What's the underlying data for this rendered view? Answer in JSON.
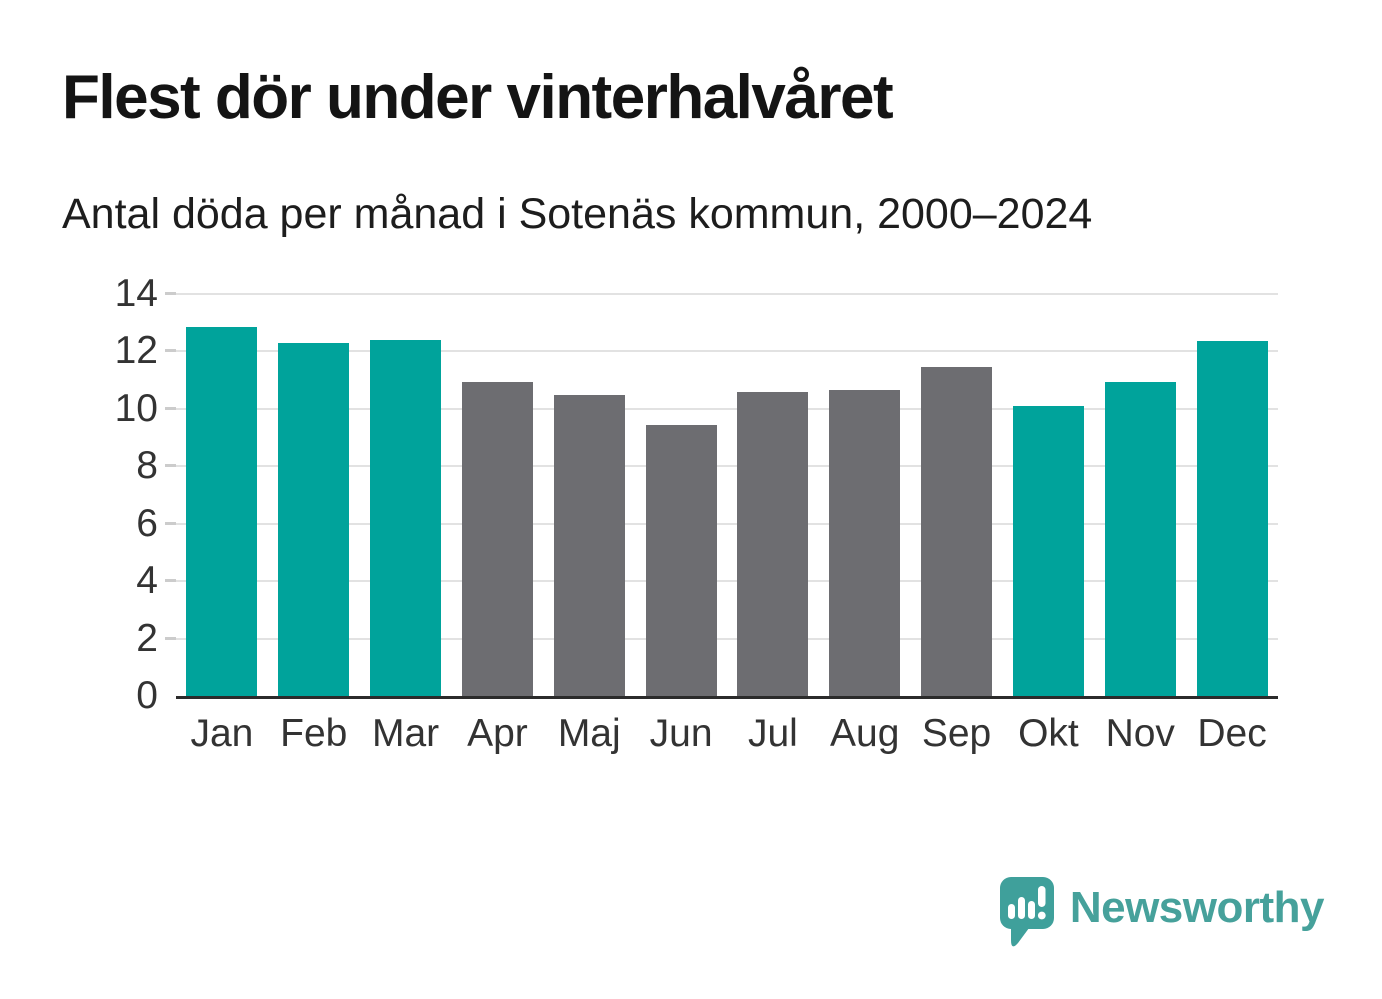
{
  "header": {
    "title": "Flest dör under vinterhalvåret",
    "subtitle": "Antal döda per månad i Sotenäs kommun, 2000–2024"
  },
  "chart_data": {
    "type": "bar",
    "title": "Flest dör under vinterhalvåret",
    "subtitle": "Antal döda per månad i Sotenäs kommun, 2000–2024",
    "categories": [
      "Jan",
      "Feb",
      "Mar",
      "Apr",
      "Maj",
      "Jun",
      "Jul",
      "Aug",
      "Sep",
      "Okt",
      "Nov",
      "Dec"
    ],
    "values": [
      12.85,
      12.3,
      12.4,
      10.95,
      10.5,
      9.45,
      10.6,
      10.65,
      11.45,
      10.1,
      10.95,
      12.35
    ],
    "bar_colors": [
      "winter",
      "winter",
      "winter",
      "summer",
      "summer",
      "summer",
      "summer",
      "summer",
      "summer",
      "winter",
      "winter",
      "winter"
    ],
    "xlabel": "",
    "ylabel": "",
    "ylim": [
      0,
      14
    ],
    "yticks": [
      0,
      2,
      4,
      6,
      8,
      10,
      12,
      14
    ],
    "grid": "horizontal",
    "legend": "none"
  },
  "colors": {
    "winter_bar": "#00a39b",
    "summer_bar": "#6d6d71",
    "gridline": "#e2e2e2",
    "axis_line": "#2b2b2b",
    "tick_label": "#333333",
    "title_text": "#141414",
    "logo_teal": "#46a19b"
  },
  "branding": {
    "logo_text": "Newsworthy"
  }
}
